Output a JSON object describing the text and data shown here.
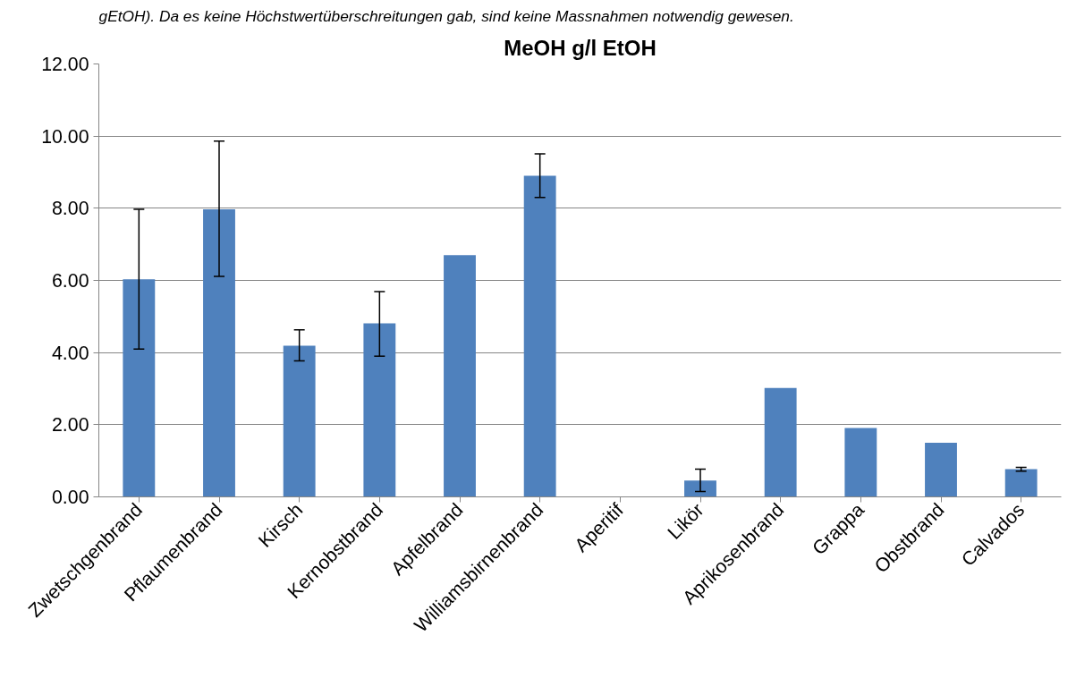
{
  "chart_data": {
    "type": "bar",
    "title": "MeOH g/l EtOH",
    "annotations": [
      "gEtOH). Da es keine Höchstwertüberschreitungen gab, sind keine Massnahmen notwendig gewesen."
    ],
    "categories": [
      "Zwetschgenbrand",
      "Pflaumenbrand",
      "Kirsch",
      "Kernobstbrand",
      "Apfelbrand",
      "Williamsbirnenbrand",
      "Aperitif",
      "Likör",
      "Aprikosenbrand",
      "Grappa",
      "Obstbrand",
      "Calvados"
    ],
    "values": [
      6.03,
      7.97,
      4.19,
      4.81,
      6.7,
      8.9,
      0,
      0.45,
      3.02,
      1.91,
      1.5,
      0.77
    ],
    "errors": [
      [
        4.1,
        7.97
      ],
      [
        6.11,
        9.86
      ],
      [
        3.77,
        4.63
      ],
      [
        3.9,
        5.69
      ],
      null,
      [
        8.3,
        9.51
      ],
      null,
      [
        0.15,
        0.77
      ],
      null,
      null,
      null,
      [
        0.71,
        0.82
      ]
    ],
    "color": "#4f81bd",
    "ylim": [
      0,
      12
    ],
    "yticks": [
      {
        "value": 0,
        "label": "0.00"
      },
      {
        "value": 2,
        "label": "2.00"
      },
      {
        "value": 4,
        "label": "4.00"
      },
      {
        "value": 6,
        "label": "6.00"
      },
      {
        "value": 8,
        "label": "8.00"
      },
      {
        "value": 10,
        "label": "10.00"
      },
      {
        "value": 12,
        "label": "12.00"
      }
    ],
    "grid": "y"
  }
}
